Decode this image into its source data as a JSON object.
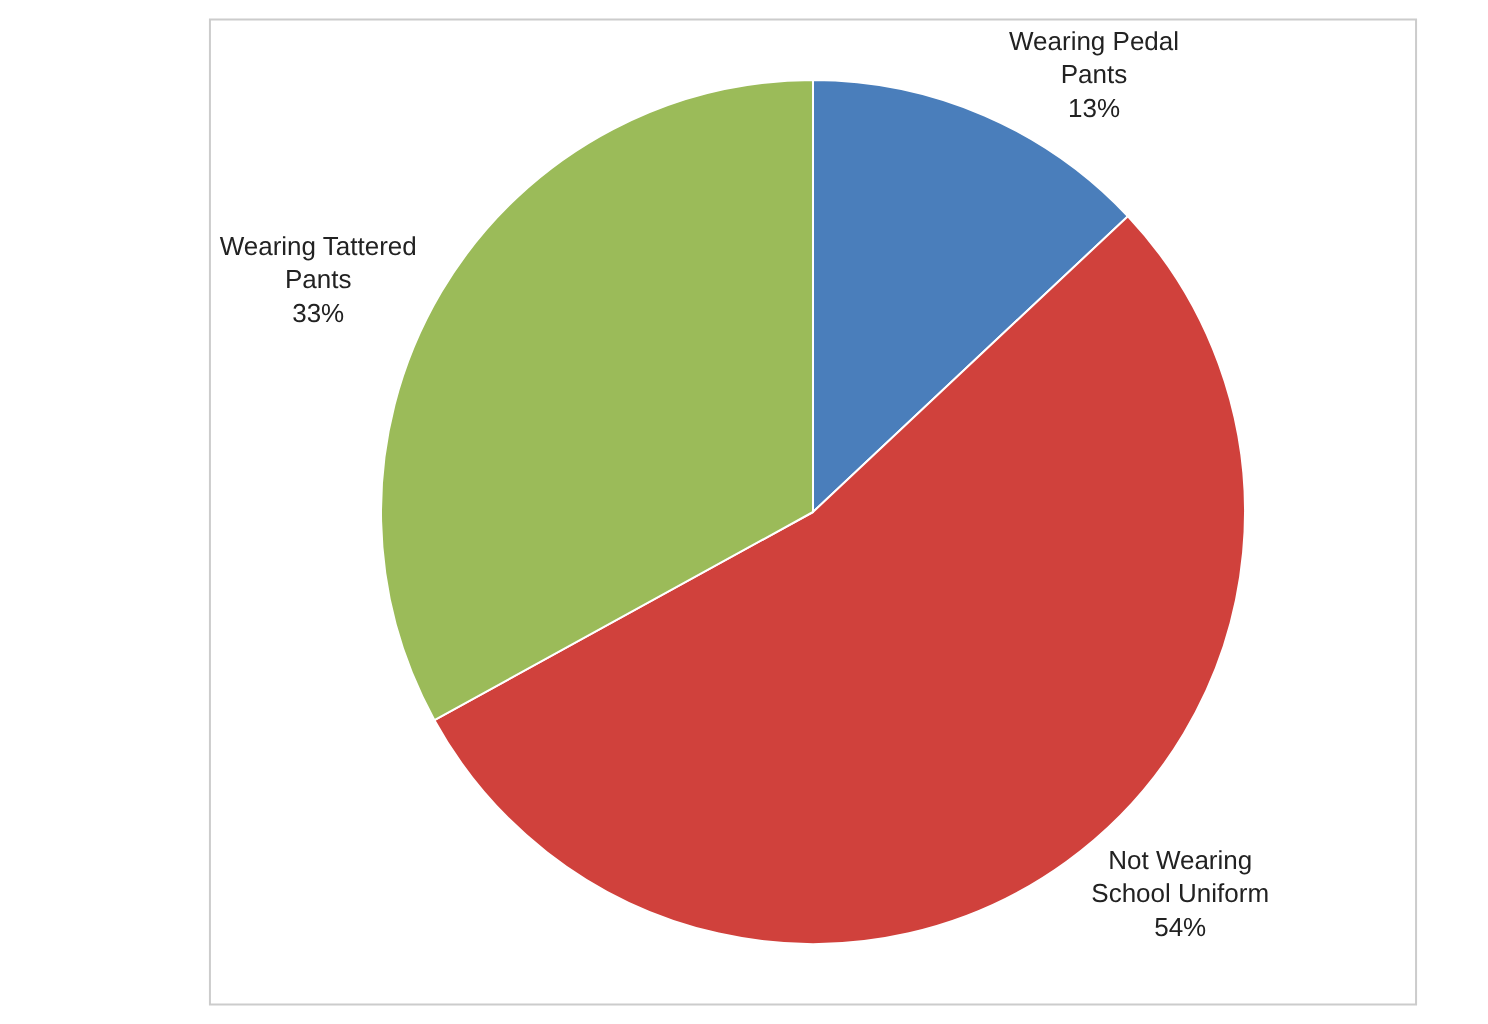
{
  "chart_data": {
    "type": "pie",
    "categories": [
      "Wearing Pedal Pants",
      "Not Wearing School Uniform",
      "Wearing Tattered Pants"
    ],
    "values": [
      13,
      54,
      33
    ],
    "value_labels": [
      "13%",
      "54%",
      "33%"
    ],
    "colors": [
      "#4a7ebb",
      "#d0413c",
      "#9bbb59"
    ],
    "legend": false
  }
}
